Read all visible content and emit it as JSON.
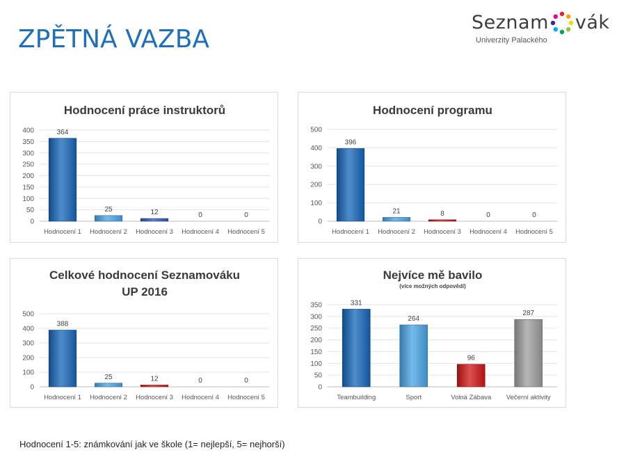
{
  "page": {
    "title": "ZPĚTNÁ VAZBA",
    "footnote": "Hodnocení 1-5: známkování jak ve škole (1= nejlepší, 5= nejhorší)"
  },
  "logo": {
    "text_left": "Seznam",
    "text_right": "vák",
    "subtitle": "Univerzity Palackého",
    "icon": "colorful-people-circle-icon"
  },
  "colors": {
    "title": "#1f6fba",
    "bar_dark_blue": "#1565b8",
    "bar_light_blue": "#4aa3e6",
    "bar_red": "#d01515",
    "bar_gray": "#9d9d9d"
  },
  "chart_data": [
    {
      "type": "bar",
      "title": "Hodnocení práce instruktorů",
      "categories": [
        "Hodnocení 1",
        "Hodnocení 2",
        "Hodnocení 3",
        "Hodnocení 4",
        "Hodnocení 5"
      ],
      "values": [
        364,
        25,
        12,
        0,
        0
      ],
      "data_labels": [
        "364",
        "25",
        "12",
        "0",
        "0"
      ],
      "bar_colors": [
        "#1565b8",
        "#4aa3e6",
        "#2f5db8",
        "#4aa3e6",
        "#4aa3e6"
      ],
      "ylim": [
        0,
        400
      ],
      "yticks": [
        0,
        50,
        100,
        150,
        200,
        250,
        300,
        350,
        400
      ],
      "grid": true,
      "legend": "none"
    },
    {
      "type": "bar",
      "title": "Hodnocení programu",
      "categories": [
        "Hodnocení 1",
        "Hodnocení 2",
        "Hodnocení 3",
        "Hodnocení 4",
        "Hodnocení 5"
      ],
      "values": [
        396,
        21,
        8,
        0,
        0
      ],
      "data_labels": [
        "396",
        "21",
        "8",
        "0",
        "0"
      ],
      "bar_colors": [
        "#1565b8",
        "#4aa3e6",
        "#d01515",
        "#4aa3e6",
        "#4aa3e6"
      ],
      "ylim": [
        0,
        500
      ],
      "yticks": [
        0,
        100,
        200,
        300,
        400,
        500
      ],
      "grid": true,
      "legend": "none"
    },
    {
      "type": "bar",
      "title": "Celkové hodnocení Seznamováku UP 2016",
      "title_lines": [
        "Celkové hodnocení Seznamováku",
        "UP 2016"
      ],
      "categories": [
        "Hodnocení 1",
        "Hodnocení 2",
        "Hodnocení 3",
        "Hodnocení 4",
        "Hodnocení 5"
      ],
      "values": [
        388,
        25,
        12,
        0,
        0
      ],
      "data_labels": [
        "388",
        "25",
        "12",
        "0",
        "0"
      ],
      "bar_colors": [
        "#1565b8",
        "#4aa3e6",
        "#d01515",
        "#4aa3e6",
        "#4aa3e6"
      ],
      "ylim": [
        0,
        500
      ],
      "yticks": [
        0,
        100,
        200,
        300,
        400,
        500
      ],
      "grid": true,
      "legend": "none"
    },
    {
      "type": "bar",
      "title": "Nejvíce mě bavilo",
      "subtitle": "(více možných odpovědí)",
      "categories": [
        "Teambuilding",
        "Sport",
        "Volná Zábava",
        "Večerní aktivity"
      ],
      "values": [
        331,
        264,
        96,
        287
      ],
      "data_labels": [
        "331",
        "264",
        "96",
        "287"
      ],
      "bar_colors": [
        "#1565b8",
        "#4aa3e6",
        "#d01515",
        "#9d9d9d"
      ],
      "ylim": [
        0,
        350
      ],
      "yticks": [
        0,
        50,
        100,
        150,
        200,
        250,
        300,
        350
      ],
      "grid": true,
      "legend": "none"
    }
  ]
}
